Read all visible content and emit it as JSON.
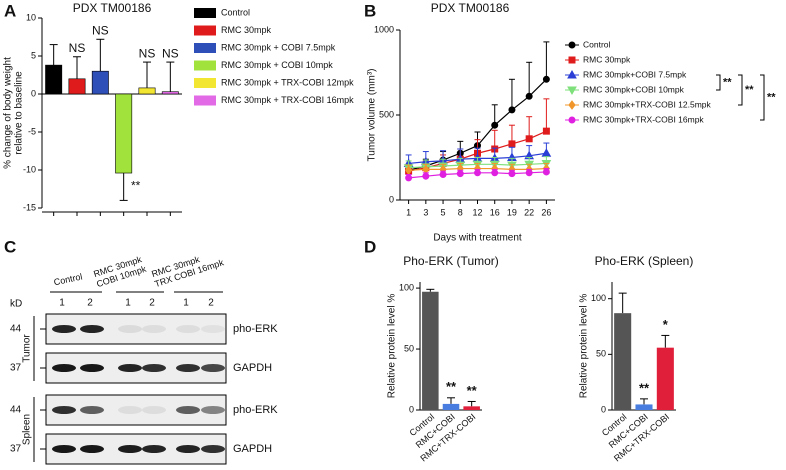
{
  "panel_labels": [
    "A",
    "B",
    "C",
    "D"
  ],
  "chart_data": [
    {
      "type": "bar",
      "title": "PDX TM00186",
      "ylabel": [
        "% change of body weight",
        "relative to baseline"
      ],
      "ylim": [
        -15,
        10
      ],
      "yticks": [
        -15,
        -10,
        -5,
        0,
        5,
        10
      ],
      "series": [
        {
          "name": "Control",
          "color": "#000000",
          "values": [
            3.8
          ],
          "errors": [
            2.7
          ],
          "annotation": null
        },
        {
          "name": "RMC 30mpk",
          "color": "#e01b1b",
          "values": [
            2.0
          ],
          "errors": [
            2.9
          ],
          "annotation": "NS"
        },
        {
          "name": "RMC 30mpk + COBI 7.5mpk",
          "color": "#2f4fb8",
          "values": [
            3.0
          ],
          "errors": [
            4.2
          ],
          "annotation": "NS"
        },
        {
          "name": "RMC 30mpk + COBI 10mpk",
          "color": "#a2e23c",
          "values": [
            -10.4
          ],
          "errors": [
            3.6
          ],
          "annotation": "**"
        },
        {
          "name": "RMC 30mpk + TRX-COBI 12mpk",
          "color": "#f2e632",
          "values": [
            0.8
          ],
          "errors": [
            3.4
          ],
          "annotation": "NS"
        },
        {
          "name": "RMC 30mpk + TRX-COBI 16mpk",
          "color": "#e26ae6",
          "values": [
            0.3
          ],
          "errors": [
            3.9
          ],
          "annotation": "NS"
        }
      ]
    },
    {
      "type": "line",
      "title": "PDX TM00186",
      "ylabel": "Tumor volume (mm³)",
      "xlabel": "Days with treatment",
      "categories": [
        "1",
        "3",
        "5",
        "8",
        "12",
        "16",
        "19",
        "22",
        "26"
      ],
      "ylim": [
        0,
        1000
      ],
      "yticks": [
        0,
        500,
        1000
      ],
      "significance": [
        "**",
        "**",
        "**"
      ],
      "series": [
        {
          "name": "Control",
          "color": "#000000",
          "marker": "circle",
          "values": [
            175,
            200,
            235,
            275,
            320,
            440,
            530,
            610,
            710
          ],
          "errors": [
            30,
            40,
            50,
            70,
            80,
            120,
            180,
            200,
            220
          ]
        },
        {
          "name": "RMC 30mpk",
          "color": "#e01b1b",
          "marker": "square",
          "values": [
            170,
            190,
            215,
            240,
            275,
            300,
            330,
            360,
            405
          ],
          "errors": [
            30,
            40,
            50,
            60,
            80,
            110,
            110,
            130,
            190
          ]
        },
        {
          "name": "RMC 30mpk+COBI 7.5mpk",
          "color": "#2b3fd6",
          "marker": "triangle",
          "values": [
            215,
            225,
            230,
            240,
            245,
            245,
            250,
            260,
            275
          ],
          "errors": [
            50,
            60,
            60,
            60,
            60,
            60,
            60,
            60,
            60
          ]
        },
        {
          "name": "RMC 30mpk+COBI 10mpk",
          "color": "#7ee07a",
          "marker": "triangle-down",
          "values": [
            190,
            195,
            200,
            205,
            210,
            210,
            205,
            210,
            215
          ],
          "errors": [
            40,
            40,
            40,
            40,
            40,
            40,
            40,
            40,
            40
          ]
        },
        {
          "name": "RMC 30mpk+TRX-COBI 12.5mpk",
          "color": "#f0962a",
          "marker": "diamond",
          "values": [
            175,
            180,
            180,
            185,
            185,
            185,
            180,
            180,
            185
          ],
          "errors": [
            30,
            30,
            30,
            30,
            30,
            30,
            30,
            30,
            30
          ]
        },
        {
          "name": "RMC 30mpk+TRX-COBI 16mpk",
          "color": "#e020e0",
          "marker": "circle",
          "values": [
            130,
            140,
            150,
            155,
            160,
            160,
            155,
            160,
            165
          ],
          "errors": [
            20,
            20,
            20,
            20,
            20,
            20,
            20,
            20,
            20
          ]
        }
      ]
    },
    {
      "type": "bar",
      "title": "Pho-ERK (Tumor)",
      "ylabel": "Relative protein level %",
      "categories": [
        "Control",
        "RMC+COBI",
        "RMC+TRX-COBI"
      ],
      "values": [
        97,
        5,
        3
      ],
      "errors": [
        2,
        5,
        4
      ],
      "colors": [
        "#555555",
        "#4a7de0",
        "#e0203a"
      ],
      "annotations": [
        null,
        "**",
        "**"
      ],
      "ylim": [
        0,
        105
      ],
      "yticks": [
        0,
        50,
        100
      ]
    },
    {
      "type": "bar",
      "title": "Pho-ERK (Spleen)",
      "ylabel": "Relative protein level %",
      "categories": [
        "Control",
        "RMC+COBI",
        "RMC+TRX-COBI"
      ],
      "values": [
        87,
        5,
        56
      ],
      "errors": [
        18,
        5,
        11
      ],
      "colors": [
        "#555555",
        "#4a7de0",
        "#e0203a"
      ],
      "annotations": [
        null,
        "**",
        "*"
      ],
      "ylim": [
        0,
        115
      ],
      "yticks": [
        0,
        50,
        100
      ]
    }
  ],
  "blot": {
    "groups": [
      [
        "Control"
      ],
      [
        "RMC 30mpk",
        "COBI 10mpk"
      ],
      [
        "RMC 30mpk",
        "TRX COBI 16mpk"
      ]
    ],
    "lanes": [
      "1",
      "2",
      "1",
      "2",
      "1",
      "2"
    ],
    "kd_label": "kD",
    "rows": [
      {
        "marker": "44",
        "label": "pho-ERK"
      },
      {
        "marker": "37",
        "label": "GAPDH"
      },
      {
        "marker": "44",
        "label": "pho-ERK"
      },
      {
        "marker": "37",
        "label": "GAPDH"
      }
    ],
    "tissues": [
      "Tumor",
      "Spleen"
    ]
  }
}
